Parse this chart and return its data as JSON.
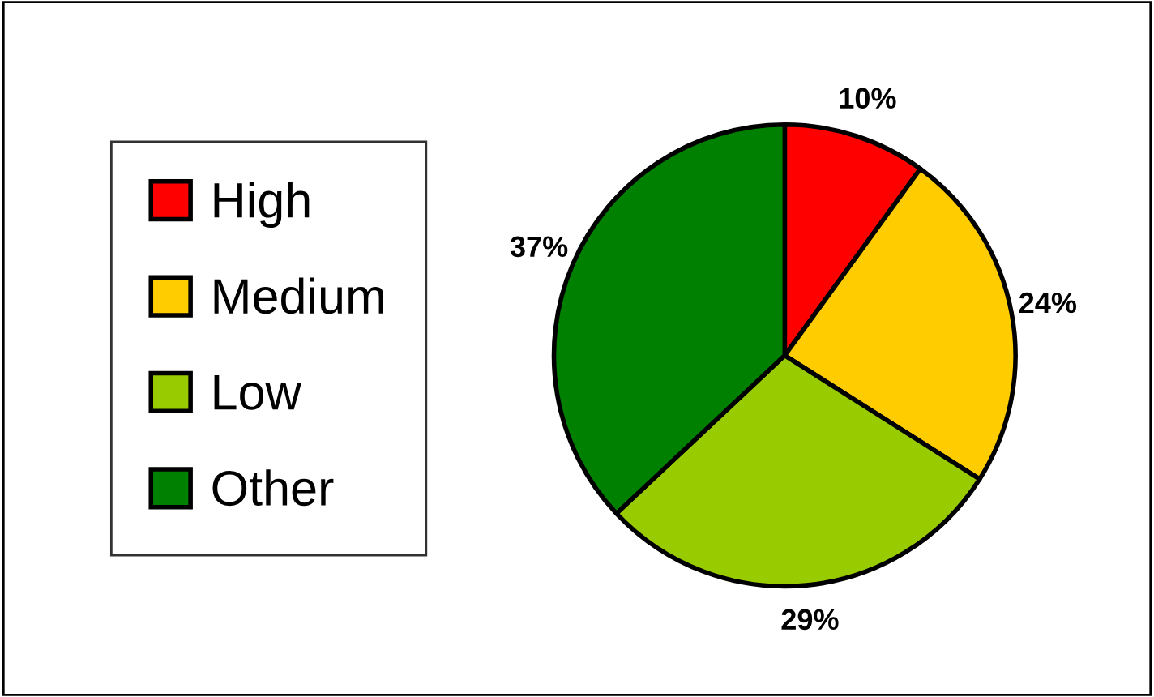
{
  "chart_data": {
    "type": "pie",
    "categories": [
      "High",
      "Medium",
      "Low",
      "Other"
    ],
    "values": [
      10,
      24,
      29,
      37
    ],
    "colors": [
      "#ff0000",
      "#ffcc00",
      "#99cc00",
      "#008000"
    ],
    "value_labels": [
      "10%",
      "24%",
      "29%",
      "37%"
    ],
    "legend": "left"
  }
}
